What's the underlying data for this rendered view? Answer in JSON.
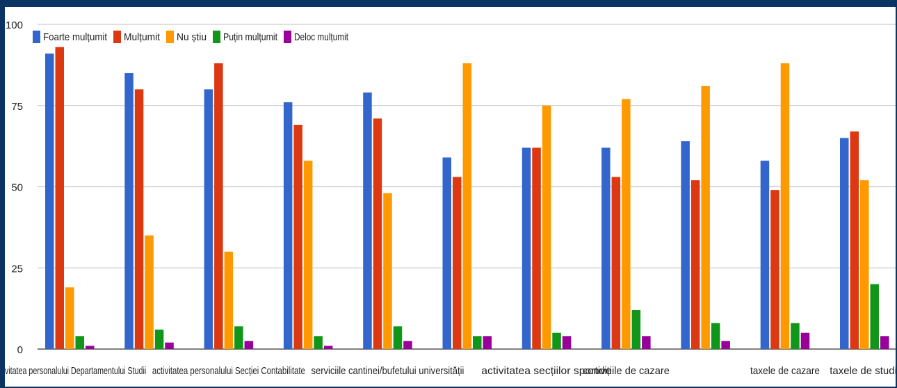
{
  "chart_data": {
    "type": "bar",
    "title": "",
    "xlabel": "",
    "ylabel": "",
    "ylim": [
      0,
      100
    ],
    "yticks": [
      0,
      25,
      50,
      75,
      100
    ],
    "grid": true,
    "legend_position": "top-left",
    "categories": [
      "activitatea personalului Departamentului Studii",
      "",
      "activitatea personalului Secției Contabilitate",
      "",
      "serviciile cantinei/bufetului universității",
      "",
      "activitatea secțiilor sportive",
      "condițiile de cazare",
      "",
      "taxele de cazare",
      "taxele de studii"
    ],
    "series": [
      {
        "name": "Foarte mulțumit",
        "color": "#3366cc",
        "values": [
          91,
          85,
          80,
          76,
          79,
          59,
          62,
          62,
          64,
          58,
          65
        ]
      },
      {
        "name": "Mulțumit",
        "color": "#dc3912",
        "values": [
          93,
          80,
          88,
          69,
          71,
          53,
          62,
          53,
          52,
          49,
          67
        ]
      },
      {
        "name": "Nu știu",
        "color": "#ff9900",
        "values": [
          19,
          35,
          30,
          58,
          48,
          88,
          75,
          77,
          81,
          88,
          52
        ]
      },
      {
        "name": "Puțin mulțumit",
        "color": "#109618",
        "values": [
          4,
          6,
          7,
          4,
          7,
          4,
          5,
          12,
          8,
          8,
          20
        ]
      },
      {
        "name": "Deloc mulțumit",
        "color": "#990099",
        "values": [
          1,
          2,
          2.5,
          1,
          2.5,
          4,
          4,
          4,
          2.5,
          5,
          4
        ]
      }
    ]
  }
}
